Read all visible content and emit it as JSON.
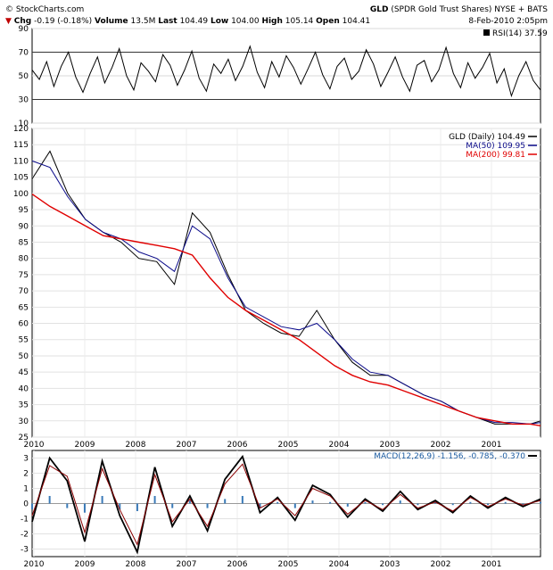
{
  "header": {
    "copyright": "© StockCharts.com",
    "symbol": "GLD",
    "company": "(SPDR Gold Trust Shares) NYSE + BATS",
    "date": "8-Feb-2010 2:05pm",
    "open_label": "Open",
    "open": "104.41",
    "high_label": "High",
    "high": "105.14",
    "low_label": "Low",
    "low": "104.00",
    "last_label": "Last",
    "last": "104.49",
    "volume_label": "Volume",
    "volume": "13.5M",
    "chg_label": "Chg",
    "chg": "-0.19 (-0.18%)",
    "chg_marker": "▼"
  },
  "chart_data": [
    {
      "type": "line",
      "panel": "rsi",
      "legend": "RSI(14) 37.59",
      "ylim": [
        10,
        90
      ],
      "y_ticks": [
        10,
        30,
        50,
        70,
        90
      ],
      "reference_lines": [
        30,
        70
      ],
      "series": [
        {
          "name": "RSI(14)",
          "color": "#000000",
          "values": [
            55,
            47,
            62,
            41,
            58,
            70,
            49,
            36,
            52,
            66,
            44,
            57,
            73,
            50,
            38,
            61,
            54,
            45,
            68,
            59,
            42,
            55,
            71,
            48,
            37,
            60,
            52,
            64,
            46,
            58,
            75,
            53,
            40,
            62,
            49,
            67,
            57,
            43,
            56,
            70,
            51,
            39,
            58,
            65,
            47,
            54,
            72,
            60,
            41,
            53,
            66,
            49,
            37,
            59,
            63,
            45,
            55,
            74,
            52,
            40,
            61,
            48,
            57,
            69,
            44,
            56,
            33,
            50,
            62,
            46,
            38
          ]
        }
      ]
    },
    {
      "type": "line",
      "panel": "price",
      "legend": [
        {
          "label": "GLD (Daily) 104.49",
          "color": "#000000"
        },
        {
          "label": "MA(50) 109.95",
          "color": "#0b0b8a"
        },
        {
          "label": "MA(200) 99.81",
          "color": "#e00000"
        }
      ],
      "y_ticks": [
        25,
        30,
        35,
        40,
        45,
        50,
        55,
        60,
        65,
        70,
        75,
        80,
        85,
        90,
        95,
        100,
        105,
        110,
        115,
        120
      ],
      "x_labels": [
        "2010",
        "2009",
        "2008",
        "2007",
        "2006",
        "2005",
        "2004",
        "2003",
        "2002",
        "2001"
      ],
      "x": [
        0,
        0.035,
        0.07,
        0.105,
        0.14,
        0.175,
        0.21,
        0.245,
        0.28,
        0.315,
        0.35,
        0.385,
        0.42,
        0.455,
        0.49,
        0.525,
        0.56,
        0.595,
        0.63,
        0.665,
        0.7,
        0.735,
        0.77,
        0.805,
        0.84,
        0.875,
        0.91,
        0.945,
        0.98,
        1.0
      ],
      "series": [
        {
          "name": "GLD (Daily)",
          "color": "#000000",
          "values": [
            104.5,
            113,
            100,
            92,
            88,
            85,
            80,
            79,
            72,
            94,
            88,
            75,
            64,
            60,
            57,
            56,
            64,
            55,
            48,
            44,
            44,
            41,
            38,
            36,
            33,
            31,
            29,
            29,
            29,
            30
          ]
        },
        {
          "name": "MA(50)",
          "color": "#0b0b8a",
          "values": [
            110,
            108,
            99,
            92,
            88,
            86,
            82,
            80,
            76,
            90,
            86,
            74,
            65,
            62,
            59,
            58,
            60,
            55,
            49,
            45,
            44,
            41,
            38,
            36,
            33,
            31,
            29.5,
            29.5,
            29,
            29.5
          ]
        },
        {
          "name": "MA(200)",
          "color": "#e00000",
          "values": [
            99.8,
            96,
            93,
            90,
            87,
            86,
            85,
            84,
            83,
            81,
            74,
            68,
            64,
            61,
            58,
            55,
            51,
            47,
            44,
            42,
            41,
            39,
            37,
            35,
            33,
            31,
            30,
            29,
            29,
            28.5
          ]
        }
      ]
    },
    {
      "type": "line",
      "panel": "macd",
      "legend": "MACD(12,26,9) -1.156, -0.785, -0.370",
      "ylim": [
        -3.5,
        3.5
      ],
      "y_ticks": [
        -3,
        -2,
        -1,
        0,
        1,
        2,
        3
      ],
      "x_labels": [
        "2010",
        "2009",
        "2008",
        "2007",
        "2006",
        "2005",
        "2004",
        "2003",
        "2002",
        "2001"
      ],
      "series": [
        {
          "name": "MACD",
          "color": "#000000",
          "values": [
            -1.2,
            3,
            1.5,
            -2.5,
            2.8,
            -0.8,
            -3.2,
            2.4,
            -1.5,
            0.5,
            -1.8,
            1.6,
            3.1,
            -0.6,
            0.4,
            -1.1,
            1.2,
            0.6,
            -0.9,
            0.3,
            -0.5,
            0.8,
            -0.4,
            0.2,
            -0.6,
            0.5,
            -0.3,
            0.4,
            -0.2,
            0.3
          ]
        },
        {
          "name": "Signal",
          "color": "#8a0000",
          "values": [
            -0.8,
            2.5,
            1.8,
            -1.9,
            2.3,
            -0.4,
            -2.7,
            1.9,
            -1.2,
            0.3,
            -1.5,
            1.3,
            2.6,
            -0.3,
            0.3,
            -0.8,
            1.0,
            0.5,
            -0.7,
            0.2,
            -0.4,
            0.6,
            -0.3,
            0.1,
            -0.5,
            0.4,
            -0.2,
            0.3,
            -0.1,
            0.2
          ]
        },
        {
          "name": "Histogram",
          "color": "#3a7ab8",
          "values": [
            -0.37,
            0.5,
            -0.3,
            -0.6,
            0.5,
            -0.4,
            -0.5,
            0.5,
            -0.3,
            0.2,
            -0.3,
            0.3,
            0.5,
            -0.3,
            0.1,
            -0.3,
            0.2,
            0.1,
            -0.2,
            0.1,
            -0.1,
            0.2,
            -0.1,
            0.1,
            -0.1,
            0.1,
            -0.1,
            0.1,
            -0.1,
            0.1
          ]
        }
      ]
    }
  ]
}
